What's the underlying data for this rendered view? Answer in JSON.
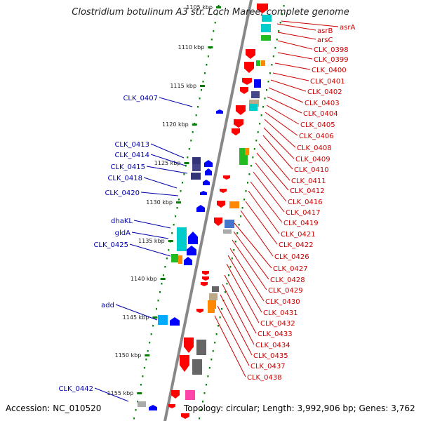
{
  "title": "Clostridium botulinum A3 str. Loch Maree, complete genome",
  "accession": "Accession: NC_010520",
  "summary": "Topology: circular; Length: 3,992,906 bp; Genes: 3,762",
  "colors": {
    "forward": "#ff0000",
    "reverse": "#0000ff",
    "backbone": "#888888",
    "ticks": "#008000",
    "label_fwd": "#cc0000",
    "label_rev": "#0000aa"
  },
  "scale_ticks": [
    "1105 kbp",
    "1110 kbp",
    "1115 kbp",
    "1120 kbp",
    "1125 kbp",
    "1130 kbp",
    "1135 kbp",
    "1140 kbp",
    "1145 kbp",
    "1150 kbp",
    "1155 kbp"
  ],
  "forward_labels": [
    "asrA",
    "asrB",
    "arsC",
    "CLK_0398",
    "CLK_0399",
    "CLK_0400",
    "CLK_0401",
    "CLK_0402",
    "CLK_0403",
    "CLK_0404",
    "CLK_0405",
    "CLK_0406",
    "CLK_0408",
    "CLK_0409",
    "CLK_0410",
    "CLK_0411",
    "CLK_0412",
    "CLK_0416",
    "CLK_0417",
    "CLK_0419",
    "CLK_0421",
    "CLK_0422",
    "CLK_0426",
    "CLK_0427",
    "CLK_0428",
    "CLK_0429",
    "CLK_0430",
    "CLK_0431",
    "CLK_0432",
    "CLK_0433",
    "CLK_0434",
    "CLK_0435",
    "CLK_0437",
    "CLK_0438"
  ],
  "reverse_labels": [
    "CLK_0407",
    "CLK_0413",
    "CLK_0414",
    "CLK_0415",
    "CLK_0418",
    "CLK_0420",
    "dhaKL",
    "gldA",
    "CLK_0425",
    "add",
    "CLK_0442"
  ]
}
